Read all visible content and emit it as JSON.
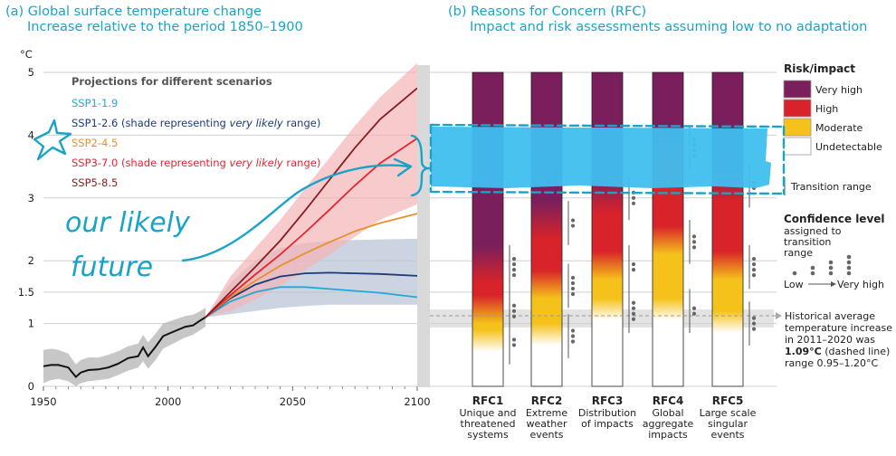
{
  "panel_a": {
    "title_line1": "(a) Global surface temperature change",
    "title_line2": "Increase relative to the period 1850–1900",
    "unit": "°C",
    "legend_heading": "Projections for different scenarios",
    "scenarios": [
      {
        "label": "SSP1-1.9",
        "note": "",
        "color": "#1fa9d8"
      },
      {
        "label": "SSP1-2.6",
        "note": " (shade representing ",
        "note_em": "very likely",
        "note_end": " range)",
        "color": "#1c3a7a"
      },
      {
        "label": "SSP2-4.5",
        "note": "",
        "color": "#e8912a"
      },
      {
        "label": "SSP3-7.0",
        "note": " (shade representing ",
        "note_em": "very likely",
        "note_end": " range)",
        "color": "#e3262f"
      },
      {
        "label": "SSP5-8.5",
        "note": "",
        "color": "#8b1a1e"
      }
    ]
  },
  "panel_b": {
    "title_line1": "(b) Reasons for Concern (RFC)",
    "title_line2": "Impact and risk assessments assuming low to no adaptation",
    "rfcs": [
      {
        "id": "RFC1",
        "lines": [
          "Unique and",
          "threatened",
          "systems"
        ]
      },
      {
        "id": "RFC2",
        "lines": [
          "Extreme",
          "weather",
          "events"
        ]
      },
      {
        "id": "RFC3",
        "lines": [
          "Distribution",
          "of impacts"
        ]
      },
      {
        "id": "RFC4",
        "lines": [
          "Global",
          "aggregate",
          "impacts"
        ]
      },
      {
        "id": "RFC5",
        "lines": [
          "Large scale",
          "singular",
          "events"
        ]
      }
    ]
  },
  "key": {
    "risk_heading": "Risk/impact",
    "levels": [
      {
        "label": "Very high",
        "color": "#7a1f5c"
      },
      {
        "label": "High",
        "color": "#d8232a"
      },
      {
        "label": "Moderate",
        "color": "#f5c21b"
      },
      {
        "label": "Undetectable",
        "color": "#ffffff"
      }
    ],
    "transition_label": "Transition range",
    "confidence_heading": "Confidence level",
    "confidence_sub": [
      "assigned to",
      "transition",
      "range"
    ],
    "confidence_low": "Low",
    "confidence_high": "Very high",
    "historical_note_lines": [
      "Historical average",
      "temperature increase",
      "in 2011–2020 was"
    ],
    "historical_bold": "1.09°C",
    "historical_dashed": " (dashed line)",
    "historical_range": "range 0.95–1.20°C"
  },
  "annotation": {
    "line1": "our likely",
    "line2": "future",
    "color": "#1aa3c8"
  },
  "chart_data": {
    "type": "line",
    "title": "Global surface temperature change",
    "ylabel": "°C",
    "xlim": [
      1950,
      2100
    ],
    "ylim": [
      0,
      5
    ],
    "x_ticks": [
      1950,
      2000,
      2050,
      2100
    ],
    "y_ticks": [
      0,
      1,
      1.5,
      2,
      3,
      4,
      5
    ],
    "historical": {
      "x": [
        1950,
        1953,
        1956,
        1960,
        1963,
        1965,
        1968,
        1972,
        1976,
        1980,
        1984,
        1988,
        1990,
        1992,
        1995,
        1998,
        2001,
        2004,
        2007,
        2010,
        2013,
        2015
      ],
      "y": [
        0.32,
        0.34,
        0.34,
        0.3,
        0.15,
        0.22,
        0.26,
        0.27,
        0.3,
        0.36,
        0.45,
        0.48,
        0.62,
        0.48,
        0.63,
        0.8,
        0.85,
        0.9,
        0.95,
        0.97,
        1.05,
        1.1
      ],
      "band_low": [
        0.05,
        0.1,
        0.12,
        0.08,
        0.0,
        0.05,
        0.08,
        0.1,
        0.12,
        0.18,
        0.25,
        0.3,
        0.4,
        0.28,
        0.42,
        0.6,
        0.66,
        0.72,
        0.78,
        0.82,
        0.9,
        0.95
      ],
      "band_high": [
        0.58,
        0.6,
        0.58,
        0.52,
        0.35,
        0.42,
        0.46,
        0.46,
        0.5,
        0.56,
        0.64,
        0.68,
        0.82,
        0.7,
        0.84,
        1.0,
        1.04,
        1.08,
        1.12,
        1.14,
        1.2,
        1.25
      ]
    },
    "series": [
      {
        "name": "SSP1-1.9",
        "x": [
          2015,
          2025,
          2035,
          2045,
          2055,
          2065,
          2075,
          2085,
          2100
        ],
        "y": [
          1.1,
          1.35,
          1.5,
          1.58,
          1.58,
          1.55,
          1.52,
          1.49,
          1.42
        ]
      },
      {
        "name": "SSP1-2.6",
        "x": [
          2015,
          2025,
          2035,
          2045,
          2055,
          2065,
          2075,
          2085,
          2100
        ],
        "y": [
          1.1,
          1.4,
          1.62,
          1.75,
          1.8,
          1.81,
          1.8,
          1.79,
          1.76
        ],
        "band_low": [
          1.1,
          1.15,
          1.2,
          1.25,
          1.28,
          1.3,
          1.3,
          1.3,
          1.3
        ],
        "band_high": [
          1.1,
          1.65,
          2.0,
          2.2,
          2.28,
          2.32,
          2.33,
          2.34,
          2.35
        ]
      },
      {
        "name": "SSP2-4.5",
        "x": [
          2015,
          2025,
          2035,
          2045,
          2055,
          2065,
          2075,
          2085,
          2100
        ],
        "y": [
          1.1,
          1.42,
          1.68,
          1.92,
          2.12,
          2.3,
          2.47,
          2.6,
          2.75
        ]
      },
      {
        "name": "SSP3-7.0",
        "x": [
          2015,
          2025,
          2035,
          2045,
          2055,
          2065,
          2075,
          2085,
          2100
        ],
        "y": [
          1.1,
          1.45,
          1.78,
          2.1,
          2.45,
          2.82,
          3.2,
          3.55,
          3.95
        ],
        "band_low": [
          1.1,
          1.2,
          1.38,
          1.6,
          1.85,
          2.1,
          2.38,
          2.65,
          2.9
        ],
        "band_high": [
          1.1,
          1.75,
          2.2,
          2.65,
          3.15,
          3.65,
          4.15,
          4.6,
          5.15
        ]
      },
      {
        "name": "SSP5-8.5",
        "x": [
          2015,
          2025,
          2035,
          2045,
          2055,
          2065,
          2075,
          2085,
          2100
        ],
        "y": [
          1.1,
          1.5,
          1.9,
          2.32,
          2.8,
          3.3,
          3.8,
          4.25,
          4.75
        ]
      }
    ],
    "rfc_bars": [
      {
        "name": "RFC1",
        "moderate_start": 0.7,
        "high_start": 1.2,
        "very_high_start": 1.9
      },
      {
        "name": "RFC2",
        "moderate_start": 0.8,
        "high_start": 1.6,
        "very_high_start": 2.6
      },
      {
        "name": "RFC3",
        "moderate_start": 1.2,
        "high_start": 1.9,
        "very_high_start": 3.0
      },
      {
        "name": "RFC4",
        "moderate_start": 1.2,
        "high_start": 2.3,
        "very_high_start": 3.8
      },
      {
        "name": "RFC5",
        "moderate_start": 1.0,
        "high_start": 1.9,
        "very_high_start": 3.2
      }
    ],
    "historical_reference": 1.09
  }
}
